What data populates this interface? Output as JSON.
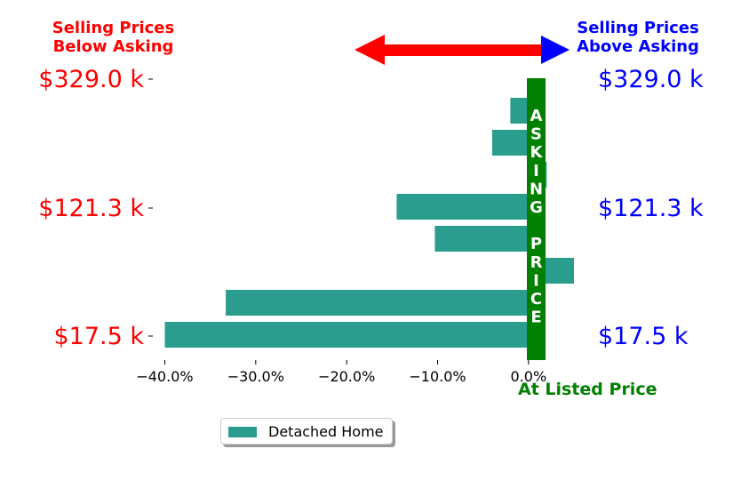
{
  "header": {
    "left_line1": "Selling Prices",
    "left_line2": "Below Asking",
    "right_line1": "Selling Prices",
    "right_line2": "Above Asking"
  },
  "bottom_label": "At Listed Price",
  "band_label": [
    "A",
    "S",
    "K",
    "I",
    "N",
    "G",
    "",
    "P",
    "R",
    "I",
    "C",
    "E"
  ],
  "legend": {
    "label": "Detached Home"
  },
  "colors": {
    "bar": "#2a9d8f",
    "band": "#008000",
    "left_text": "#ff0000",
    "right_text": "#0000ff",
    "arrow": "#ff0000",
    "arrow_head_right": "#0000ff"
  },
  "chart_data": {
    "type": "bar",
    "orientation": "horizontal",
    "xlim": [
      -0.42,
      0.05
    ],
    "x_ticks": [
      -0.4,
      -0.3,
      -0.2,
      -0.1,
      0.0
    ],
    "x_tick_labels": [
      "−40.0%",
      "−30.0%",
      "−20.0%",
      "−10.0%",
      "0.0%"
    ],
    "y_tick_labels_left": [
      "$329.0 k",
      "$121.3 k",
      "$17.5 k"
    ],
    "y_tick_labels_right": [
      "$329.0 k",
      "$121.3 k",
      "$17.5 k"
    ],
    "series": [
      {
        "name": "Detached Home",
        "values": [
          -0.02,
          -0.04,
          0.02,
          -0.145,
          -0.103,
          0.05,
          -0.333,
          -0.4
        ]
      }
    ]
  }
}
